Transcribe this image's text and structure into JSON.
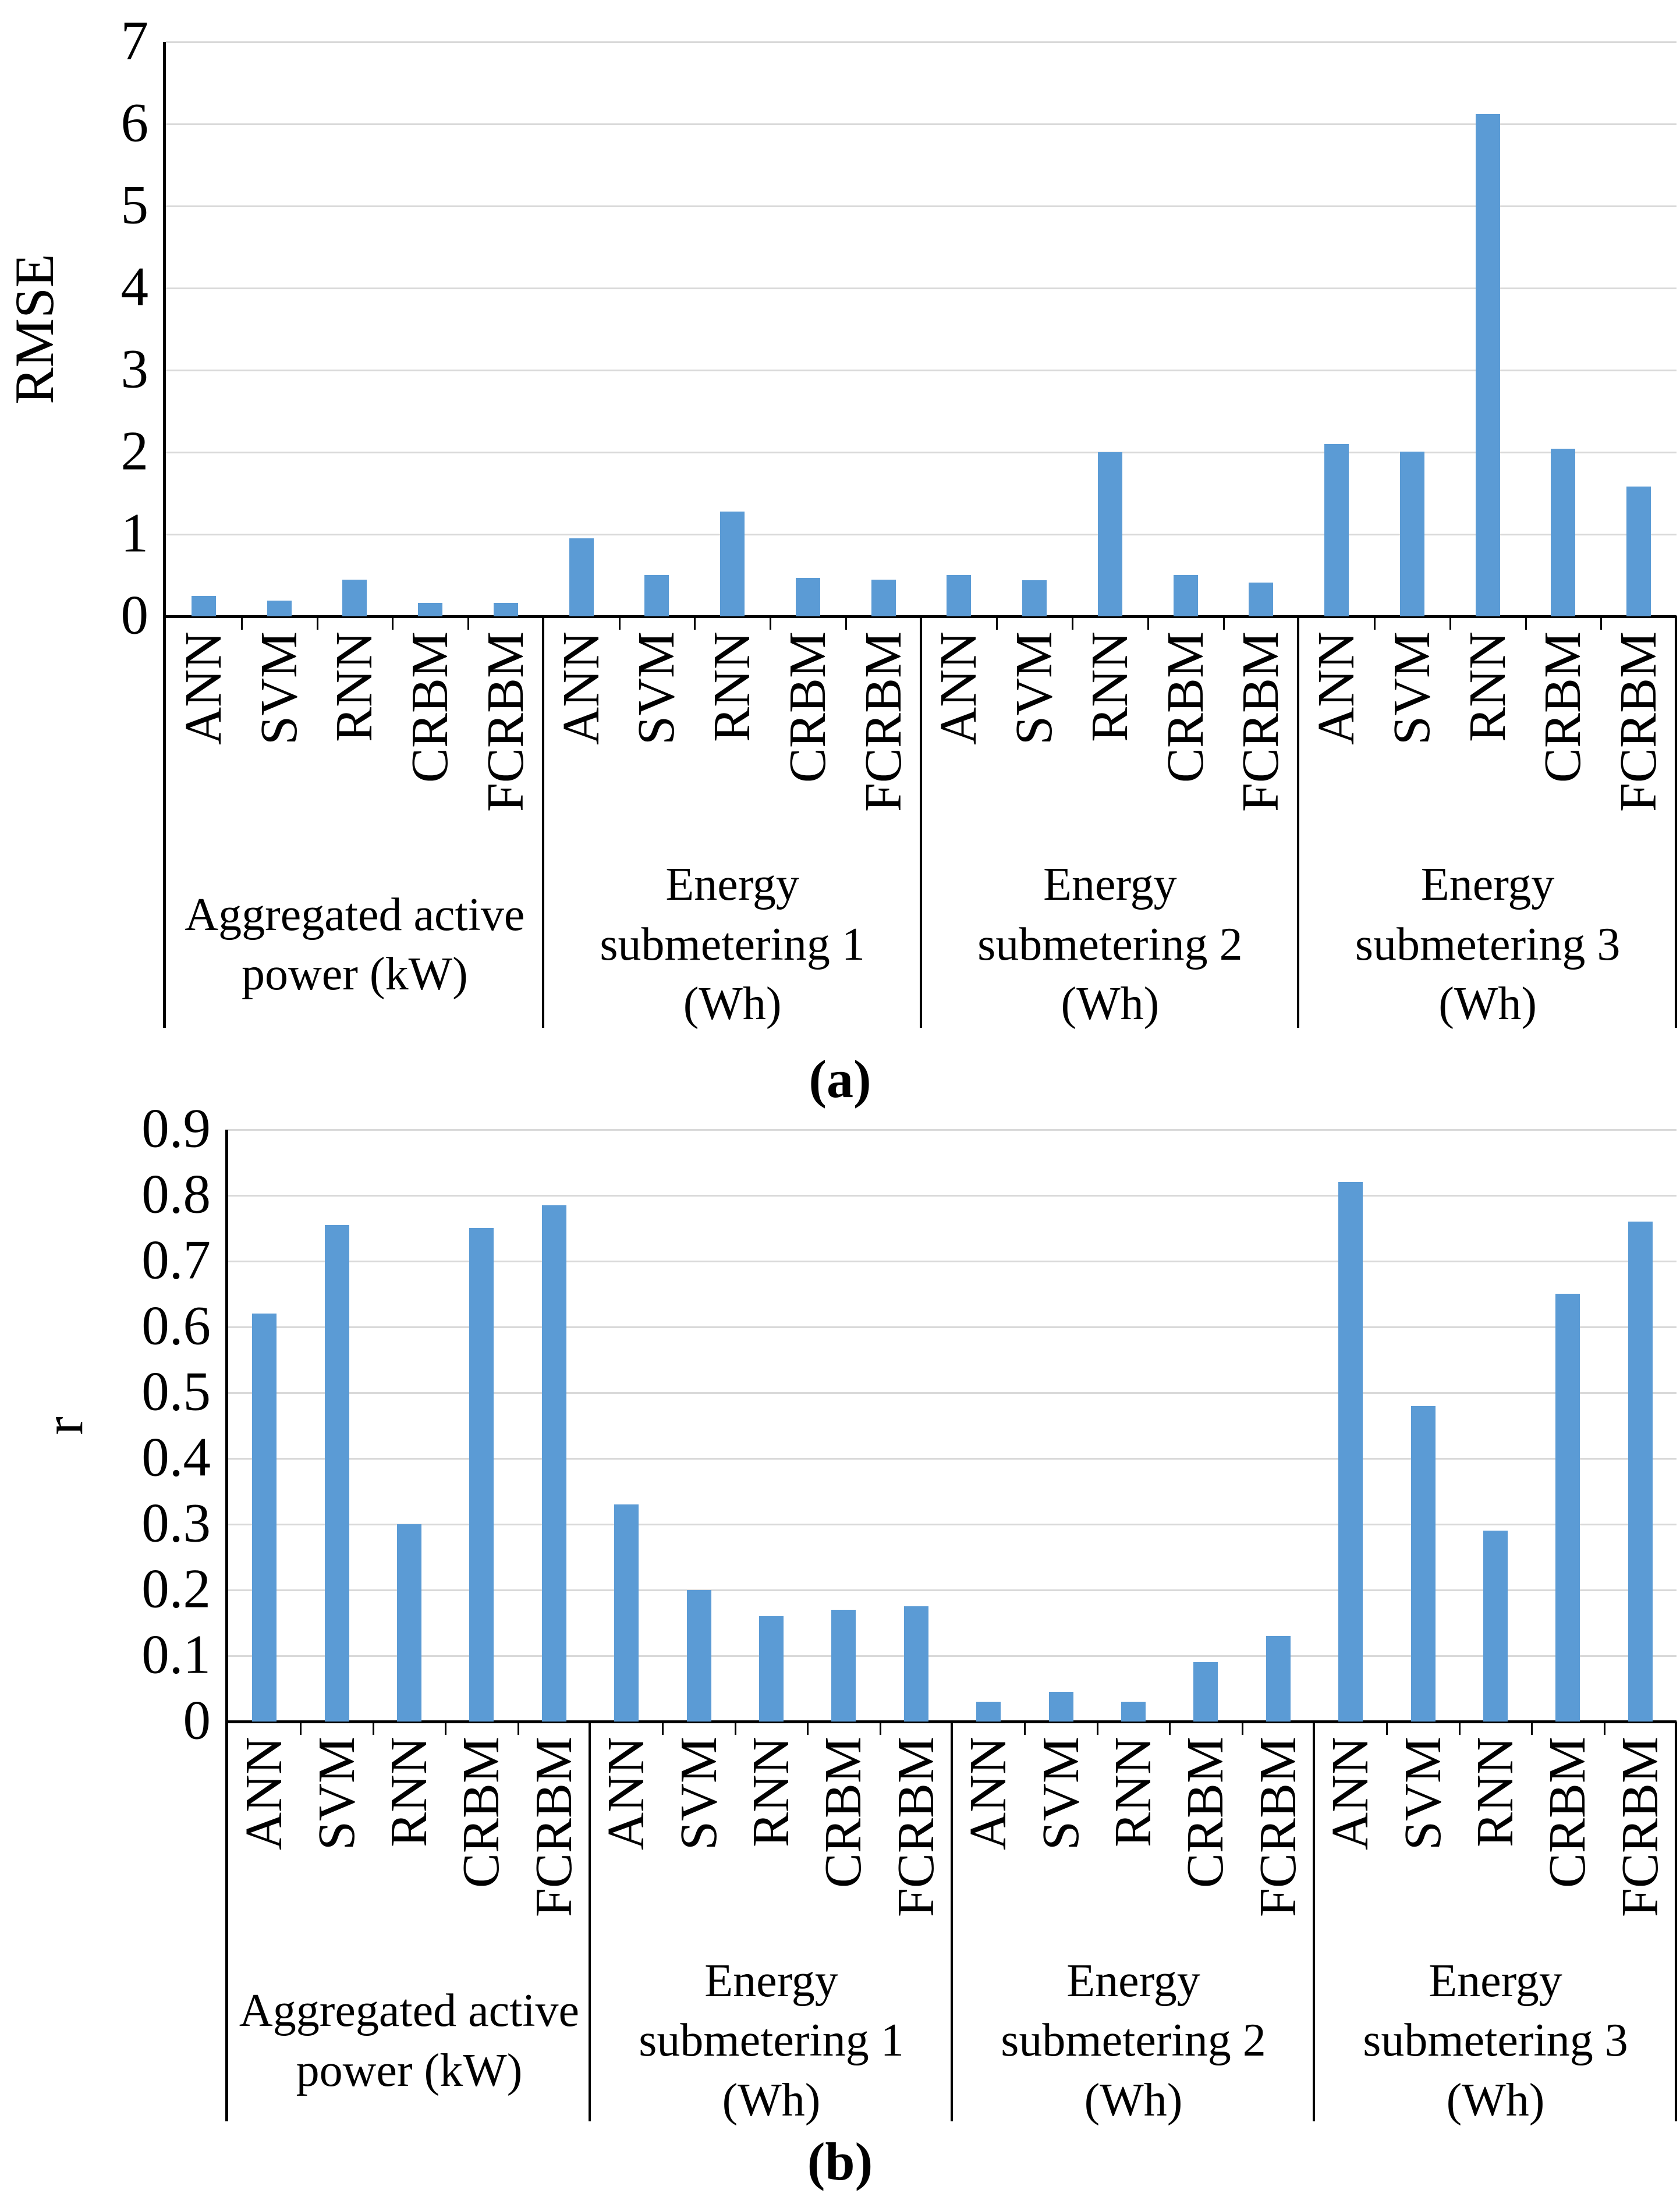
{
  "figure": {
    "caption_a": "(a)",
    "caption_b": "(b)",
    "bar_color": "#5B9BD5",
    "gridline_color": "#D9D9D9",
    "axis_color": "#000000"
  },
  "chart_data": [
    {
      "id": "a",
      "type": "bar",
      "title": "",
      "xlabel": "",
      "ylabel": "RMSE",
      "ylim": [
        0,
        7
      ],
      "grid": true,
      "legend_position": "none",
      "yticks": [
        "0",
        "1",
        "2",
        "3",
        "4",
        "5",
        "6",
        "7"
      ],
      "categories": [
        "ANN",
        "SVM",
        "RNN",
        "CRBM",
        "FCRBM"
      ],
      "groups": [
        "Aggregated active\npower (kW)",
        "Energy\nsubmetering 1\n(Wh)",
        "Energy\nsubmetering 2\n(Wh)",
        "Energy\nsubmetering 3\n(Wh)"
      ],
      "values_by_group": [
        [
          0.25,
          0.19,
          0.45,
          0.16,
          0.16
        ],
        [
          0.95,
          0.5,
          1.28,
          0.47,
          0.45
        ],
        [
          0.5,
          0.44,
          2.0,
          0.5,
          0.41
        ],
        [
          2.1,
          2.01,
          6.12,
          2.04,
          1.58
        ]
      ]
    },
    {
      "id": "b",
      "type": "bar",
      "title": "",
      "xlabel": "",
      "ylabel": "r",
      "ylim": [
        0,
        0.9
      ],
      "grid": true,
      "legend_position": "none",
      "yticks": [
        "0",
        "0.1",
        "0.2",
        "0.3",
        "0.4",
        "0.5",
        "0.6",
        "0.7",
        "0.8",
        "0.9"
      ],
      "categories": [
        "ANN",
        "SVM",
        "RNN",
        "CRBM",
        "FCRBM"
      ],
      "groups": [
        "Aggregated active\npower (kW)",
        "Energy\nsubmetering 1\n(Wh)",
        "Energy\nsubmetering 2\n(Wh)",
        "Energy\nsubmetering 3\n(Wh)"
      ],
      "values_by_group": [
        [
          0.62,
          0.755,
          0.3,
          0.75,
          0.785
        ],
        [
          0.33,
          0.2,
          0.16,
          0.17,
          0.175
        ],
        [
          0.03,
          0.045,
          0.03,
          0.09,
          0.13
        ],
        [
          0.82,
          0.48,
          0.29,
          0.65,
          0.76
        ]
      ]
    }
  ]
}
